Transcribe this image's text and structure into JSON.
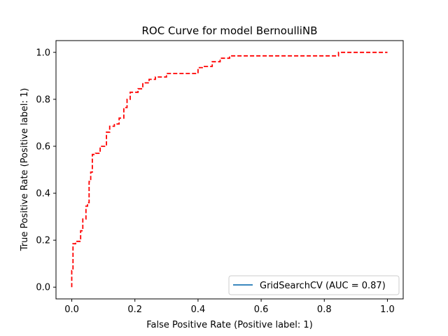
{
  "chart_data": {
    "type": "line",
    "title": "ROC Curve for model BernoulliNB",
    "xlabel": "False Positive Rate (Positive label: 1)",
    "ylabel": "True Positive Rate (Positive label: 1)",
    "xlim": [
      -0.05,
      1.05
    ],
    "ylim": [
      -0.05,
      1.05
    ],
    "xticks": [
      "0.0",
      "0.2",
      "0.4",
      "0.6",
      "0.8",
      "1.0"
    ],
    "yticks": [
      "0.0",
      "0.2",
      "0.4",
      "0.6",
      "0.8",
      "1.0"
    ],
    "grid": false,
    "legend_position": "lower-right",
    "series": [
      {
        "name": "GridSearchCV (AUC = 0.87)",
        "color": "#1f77b4",
        "style": "solid",
        "x": [],
        "y": []
      },
      {
        "color": "#ff0000",
        "style": "dashed",
        "x": [
          0.0,
          0.0,
          0.004,
          0.004,
          0.012,
          0.012,
          0.028,
          0.028,
          0.035,
          0.035,
          0.045,
          0.045,
          0.05,
          0.05,
          0.055,
          0.055,
          0.06,
          0.06,
          0.065,
          0.065,
          0.075,
          0.075,
          0.09,
          0.09,
          0.11,
          0.11,
          0.12,
          0.12,
          0.135,
          0.135,
          0.15,
          0.15,
          0.165,
          0.165,
          0.175,
          0.175,
          0.185,
          0.185,
          0.21,
          0.21,
          0.225,
          0.225,
          0.245,
          0.245,
          0.265,
          0.265,
          0.3,
          0.3,
          0.4,
          0.4,
          0.42,
          0.42,
          0.445,
          0.445,
          0.47,
          0.47,
          0.5,
          0.5,
          0.845,
          0.845,
          1.0
        ],
        "y": [
          0.0,
          0.07,
          0.07,
          0.185,
          0.185,
          0.195,
          0.195,
          0.24,
          0.24,
          0.29,
          0.29,
          0.345,
          0.345,
          0.36,
          0.36,
          0.45,
          0.45,
          0.49,
          0.49,
          0.565,
          0.565,
          0.57,
          0.57,
          0.6,
          0.6,
          0.66,
          0.66,
          0.685,
          0.685,
          0.695,
          0.695,
          0.72,
          0.72,
          0.765,
          0.765,
          0.8,
          0.8,
          0.83,
          0.83,
          0.845,
          0.845,
          0.87,
          0.87,
          0.885,
          0.885,
          0.895,
          0.895,
          0.91,
          0.91,
          0.935,
          0.935,
          0.94,
          0.94,
          0.96,
          0.96,
          0.975,
          0.975,
          0.985,
          0.985,
          1.0,
          1.0
        ]
      }
    ]
  }
}
